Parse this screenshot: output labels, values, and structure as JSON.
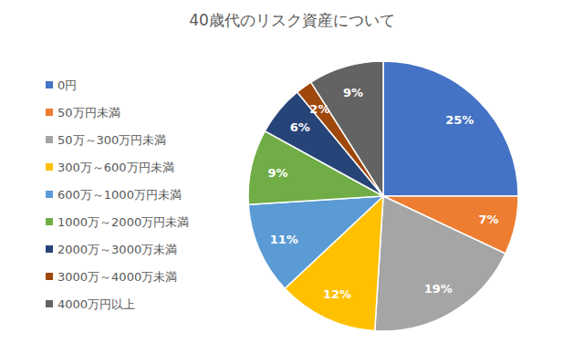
{
  "chart_data": {
    "type": "pie",
    "title": "40歳代のリスク資産について",
    "categories": [
      "0円",
      "50万円未満",
      "50万～300万円未満",
      "300万～600万円未満",
      "600万～1000万円未満",
      "1000万～2000万円未満",
      "2000万～3000万未満",
      "3000万～4000万未満",
      "4000万円以上"
    ],
    "values": [
      25,
      7,
      19,
      12,
      11,
      9,
      6,
      2,
      9
    ],
    "value_labels": [
      "25%",
      "7%",
      "19%",
      "12%",
      "11%",
      "9%",
      "6%",
      "2%",
      "9%"
    ],
    "colors": [
      "#4472c4",
      "#ed7d31",
      "#a5a5a5",
      "#ffc000",
      "#5b9bd5",
      "#70ad47",
      "#264478",
      "#9e480e",
      "#636363"
    ],
    "data_labels": true,
    "legend": "left"
  }
}
